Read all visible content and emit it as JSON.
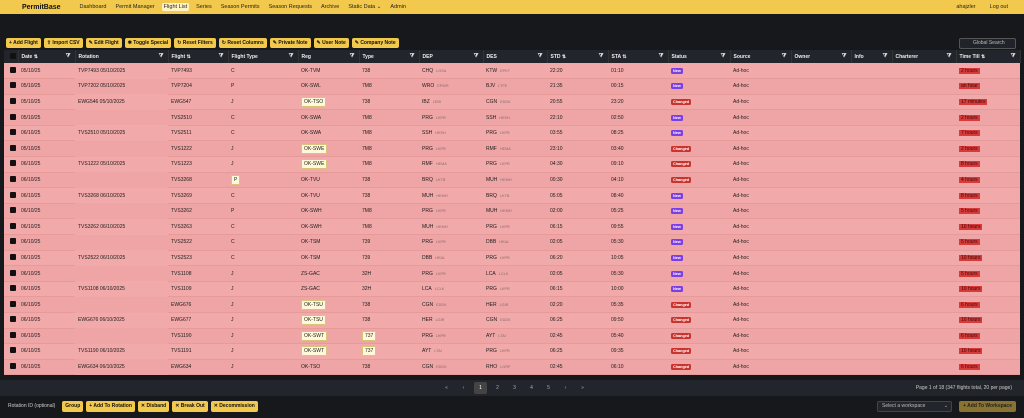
{
  "app": {
    "brand": "PermitBase"
  },
  "nav": [
    "Dashboard",
    "Permit Manager",
    "Flight List",
    "Series",
    "Season Permits",
    "Season Requests",
    "Archive",
    "Static Data ⌄",
    "Admin"
  ],
  "user": {
    "name": "ahajzler",
    "logout": "Log out"
  },
  "toolbar": {
    "buttons": [
      "+ Add Flight",
      "⇧ Import CSV",
      "✎ Edit Flight",
      "✱ Toggle Special",
      "↻ Reset Filters",
      "↻ Reset Columns",
      "✎ Private Note",
      "✎ User Note",
      "✎ Company Note"
    ],
    "search_placeholder": "Global Search"
  },
  "columns": [
    "",
    "Date ⇅",
    "Rotation",
    "Flight ⇅",
    "Flight Type",
    "Reg",
    "Type",
    "DEP",
    "DES",
    "STD ⇅",
    "STA ⇅",
    "Status",
    "Source",
    "Owner",
    "Info",
    "Charterer",
    "Time Till ⇅"
  ],
  "rows": [
    {
      "date": "05/10/25",
      "rotation": "TVP7493 05/10/2025",
      "flight": "TVP7493",
      "ftype": "C",
      "reg": "OK-TVM",
      "reg_hl": false,
      "type": "738",
      "type_hl": false,
      "dep": "CHQ",
      "dep_s": "LGSA",
      "des": "KTW",
      "des_s": "EPKT",
      "std": "22:20",
      "sta": "01:10",
      "status": "New",
      "source": "Ad-hoc",
      "owner": "",
      "info": "",
      "charterer": "",
      "time_till": "2 hours",
      "tt_hl": true
    },
    {
      "date": "05/10/25",
      "rotation": "TVP7202 05/10/2025",
      "flight": "TVP7204",
      "ftype": "P",
      "reg": "OK-SWL",
      "reg_hl": false,
      "type": "7M8",
      "type_hl": false,
      "dep": "WRO",
      "dep_s": "EPWR",
      "des": "BJV",
      "des_s": "LTFE",
      "std": "21:35",
      "sta": "00:15",
      "status": "New",
      "source": "Ad-hoc",
      "owner": "",
      "info": "",
      "charterer": "",
      "time_till": "an hour",
      "tt_hl": true
    },
    {
      "date": "05/10/25",
      "rotation": "EWG546 05/10/2025",
      "flight": "EWG547",
      "ftype": "J",
      "reg": "OK-TSO",
      "reg_hl": true,
      "type": "738",
      "type_hl": false,
      "dep": "IBZ",
      "dep_s": "LEIB",
      "des": "CGN",
      "des_s": "EDDK",
      "std": "20:55",
      "sta": "23:20",
      "status": "Changed",
      "source": "Ad-hoc",
      "owner": "",
      "info": "",
      "charterer": "",
      "time_till": "17 minutes",
      "tt_hl": true
    },
    {
      "date": "05/10/25",
      "rotation": "",
      "flight": "TVS2510",
      "ftype": "C",
      "reg": "OK-SWA",
      "reg_hl": false,
      "type": "7M8",
      "type_hl": false,
      "dep": "PRG",
      "dep_s": "LKPR",
      "des": "SSH",
      "des_s": "HESH",
      "std": "22:10",
      "sta": "02:50",
      "status": "New",
      "source": "Ad-hoc",
      "owner": "",
      "info": "",
      "charterer": "",
      "time_till": "2 hours",
      "tt_hl": true
    },
    {
      "date": "06/10/25",
      "rotation": "TVS2510 05/10/2025",
      "flight": "TVS2511",
      "ftype": "C",
      "reg": "OK-SWA",
      "reg_hl": false,
      "type": "7M8",
      "type_hl": false,
      "dep": "SSH",
      "dep_s": "HESH",
      "des": "PRG",
      "des_s": "LKPR",
      "std": "03:55",
      "sta": "08:25",
      "status": "New",
      "source": "Ad-hoc",
      "owner": "",
      "info": "",
      "charterer": "",
      "time_till": "7 hours",
      "tt_hl": true
    },
    {
      "date": "05/10/25",
      "rotation": "",
      "flight": "TVS1222",
      "ftype": "J",
      "reg": "OK-SWE",
      "reg_hl": true,
      "type": "7M8",
      "type_hl": false,
      "dep": "PRG",
      "dep_s": "LKPR",
      "des": "RMF",
      "des_s": "HEMA",
      "std": "23:10",
      "sta": "03:40",
      "status": "Changed",
      "source": "Ad-hoc",
      "owner": "",
      "info": "",
      "charterer": "",
      "time_till": "2 hours",
      "tt_hl": true
    },
    {
      "date": "06/10/25",
      "rotation": "TVS1222 05/10/2025",
      "flight": "TVS1223",
      "ftype": "J",
      "reg": "OK-SWE",
      "reg_hl": true,
      "type": "7M8",
      "type_hl": false,
      "dep": "RMF",
      "dep_s": "HEMA",
      "des": "PRG",
      "des_s": "LKPR",
      "std": "04:30",
      "sta": "09:10",
      "status": "Changed",
      "source": "Ad-hoc",
      "owner": "",
      "info": "",
      "charterer": "",
      "time_till": "8 hours",
      "tt_hl": true
    },
    {
      "date": "06/10/25",
      "rotation": "",
      "flight": "TVS3268",
      "ftype": "P",
      "reg": "OK-TVU",
      "reg_hl": false,
      "type": "738",
      "type_hl": false,
      "dep": "BRQ",
      "dep_s": "LKTB",
      "des": "MUH",
      "des_s": "HEMH",
      "std": "00:30",
      "sta": "04:10",
      "status": "Changed",
      "source": "Ad-hoc",
      "owner": "",
      "info": "",
      "charterer": "",
      "time_till": "4 hours",
      "tt_hl": true
    },
    {
      "date": "06/10/25",
      "rotation": "TVS3268 06/10/2025",
      "flight": "TVS3269",
      "ftype": "C",
      "reg": "OK-TVU",
      "reg_hl": false,
      "type": "738",
      "type_hl": false,
      "dep": "MUH",
      "dep_s": "HEMH",
      "des": "BRQ",
      "des_s": "LKTB",
      "std": "05:05",
      "sta": "08:40",
      "status": "New",
      "source": "Ad-hoc",
      "owner": "",
      "info": "",
      "charterer": "",
      "time_till": "8 hours",
      "tt_hl": true
    },
    {
      "date": "06/10/25",
      "rotation": "",
      "flight": "TVS3262",
      "ftype": "P",
      "reg": "OK-SWH",
      "reg_hl": false,
      "type": "7M8",
      "type_hl": false,
      "dep": "PRG",
      "dep_s": "LKPR",
      "des": "MUH",
      "des_s": "HEMH",
      "std": "02:00",
      "sta": "05:25",
      "status": "New",
      "source": "Ad-hoc",
      "owner": "",
      "info": "",
      "charterer": "",
      "time_till": "5 hours",
      "tt_hl": true
    },
    {
      "date": "06/10/25",
      "rotation": "TVS3262 06/10/2025",
      "flight": "TVS3263",
      "ftype": "C",
      "reg": "OK-SWH",
      "reg_hl": false,
      "type": "7M8",
      "type_hl": false,
      "dep": "MUH",
      "dep_s": "HEMH",
      "des": "PRG",
      "des_s": "LKPR",
      "std": "06:15",
      "sta": "09:55",
      "status": "New",
      "source": "Ad-hoc",
      "owner": "",
      "info": "",
      "charterer": "",
      "time_till": "10 hours",
      "tt_hl": true
    },
    {
      "date": "06/10/25",
      "rotation": "",
      "flight": "TVS2522",
      "ftype": "C",
      "reg": "OK-TSM",
      "reg_hl": false,
      "type": "739",
      "type_hl": false,
      "dep": "PRG",
      "dep_s": "LKPR",
      "des": "DBB",
      "des_s": "HEAL",
      "std": "02:05",
      "sta": "05:30",
      "status": "New",
      "source": "Ad-hoc",
      "owner": "",
      "info": "",
      "charterer": "",
      "time_till": "5 hours",
      "tt_hl": true
    },
    {
      "date": "06/10/25",
      "rotation": "TVS2522 06/10/2025",
      "flight": "TVS2523",
      "ftype": "C",
      "reg": "OK-TSM",
      "reg_hl": false,
      "type": "739",
      "type_hl": false,
      "dep": "DBB",
      "dep_s": "HEAL",
      "des": "PRG",
      "des_s": "LKPR",
      "std": "06:20",
      "sta": "10:05",
      "status": "New",
      "source": "Ad-hoc",
      "owner": "",
      "info": "",
      "charterer": "",
      "time_till": "10 hours",
      "tt_hl": true
    },
    {
      "date": "06/10/25",
      "rotation": "",
      "flight": "TVS1108",
      "ftype": "J",
      "reg": "ZS-GAC",
      "reg_hl": false,
      "type": "32H",
      "type_hl": false,
      "dep": "PRG",
      "dep_s": "LKPR",
      "des": "LCA",
      "des_s": "LCLK",
      "std": "02:05",
      "sta": "05:30",
      "status": "New",
      "source": "Ad-hoc",
      "owner": "",
      "info": "",
      "charterer": "",
      "time_till": "5 hours",
      "tt_hl": true
    },
    {
      "date": "06/10/25",
      "rotation": "TVS1108 06/10/2025",
      "flight": "TVS1109",
      "ftype": "J",
      "reg": "ZS-GAC",
      "reg_hl": false,
      "type": "32H",
      "type_hl": false,
      "dep": "LCA",
      "dep_s": "LCLK",
      "des": "PRG",
      "des_s": "LKPR",
      "std": "06:15",
      "sta": "10:00",
      "status": "New",
      "source": "Ad-hoc",
      "owner": "",
      "info": "",
      "charterer": "",
      "time_till": "10 hours",
      "tt_hl": true
    },
    {
      "date": "06/10/25",
      "rotation": "",
      "flight": "EWG676",
      "ftype": "J",
      "reg": "OK-TSU",
      "reg_hl": true,
      "type": "738",
      "type_hl": false,
      "dep": "CGN",
      "dep_s": "EDDK",
      "des": "HER",
      "des_s": "LGIR",
      "std": "02:20",
      "sta": "05:35",
      "status": "Changed",
      "source": "Ad-hoc",
      "owner": "",
      "info": "",
      "charterer": "",
      "time_till": "6 hours",
      "tt_hl": true
    },
    {
      "date": "06/10/25",
      "rotation": "EWG676 06/10/2025",
      "flight": "EWG677",
      "ftype": "J",
      "reg": "OK-TSU",
      "reg_hl": true,
      "type": "738",
      "type_hl": false,
      "dep": "HER",
      "dep_s": "LGIR",
      "des": "CGN",
      "des_s": "EDDK",
      "std": "06:25",
      "sta": "09:50",
      "status": "Changed",
      "source": "Ad-hoc",
      "owner": "",
      "info": "",
      "charterer": "",
      "time_till": "10 hours",
      "tt_hl": true
    },
    {
      "date": "06/10/25",
      "rotation": "",
      "flight": "TVS1190",
      "ftype": "J",
      "reg": "OK-SWT",
      "reg_hl": true,
      "type": "737",
      "type_hl": true,
      "dep": "PRG",
      "dep_s": "LKPR",
      "des": "AYT",
      "des_s": "LTAI",
      "std": "02:45",
      "sta": "05:40",
      "status": "Changed",
      "source": "Ad-hoc",
      "owner": "",
      "info": "",
      "charterer": "",
      "time_till": "6 hours",
      "tt_hl": true
    },
    {
      "date": "06/10/25",
      "rotation": "TVS1190 06/10/2025",
      "flight": "TVS1191",
      "ftype": "J",
      "reg": "OK-SWT",
      "reg_hl": true,
      "type": "737",
      "type_hl": true,
      "dep": "AYT",
      "dep_s": "LTAI",
      "des": "PRG",
      "des_s": "LKPR",
      "std": "06:25",
      "sta": "09:35",
      "status": "Changed",
      "source": "Ad-hoc",
      "owner": "",
      "info": "",
      "charterer": "",
      "time_till": "10 hours",
      "tt_hl": true
    },
    {
      "date": "06/10/25",
      "rotation": "EWG634 06/10/2025",
      "flight": "EWG634",
      "ftype": "J",
      "reg": "OK-TSO",
      "reg_hl": false,
      "type": "738",
      "type_hl": false,
      "dep": "CGN",
      "dep_s": "EDDK",
      "des": "RHO",
      "des_s": "LGRP",
      "std": "02:45",
      "sta": "06:10",
      "status": "Changed",
      "source": "Ad-hoc",
      "owner": "",
      "info": "",
      "charterer": "",
      "time_till": "6 hours",
      "tt_hl": true
    }
  ],
  "pager": {
    "pages": [
      "«",
      "‹",
      "1",
      "2",
      "3",
      "4",
      "5",
      "›",
      "»"
    ],
    "current": "1",
    "info": "Page 1 of 18 (347 flights total, 20 per page)"
  },
  "bottom": {
    "label": "Rotation ID (optional)",
    "buttons": [
      "Group",
      "+ Add To Rotation",
      "✕ Disband",
      "✕ Break Out",
      "✕ Decommission"
    ],
    "workspace_placeholder": "Select a workspace",
    "add_workspace": "+ Add To Workspace"
  },
  "colors": {
    "accent": "#f2c94c",
    "row": "#f2a9a9",
    "new": "#7b3fe4",
    "changed": "#c9342f",
    "time_till": "#d83a3a"
  }
}
